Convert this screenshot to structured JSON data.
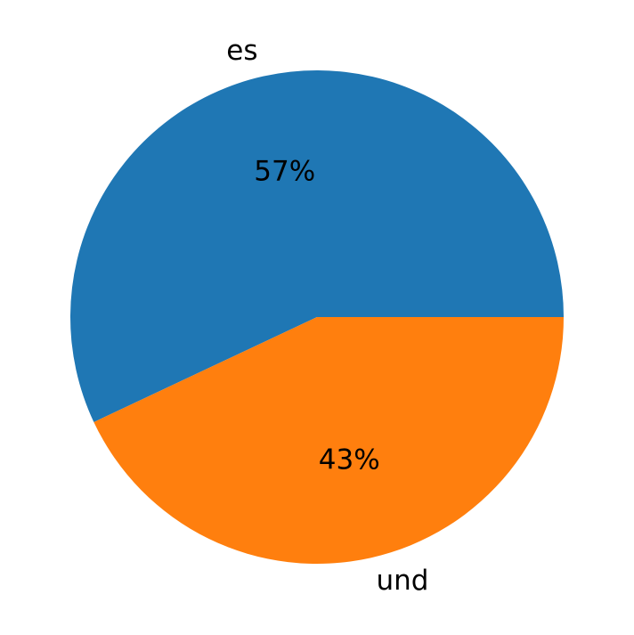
{
  "chart_data": {
    "type": "pie",
    "categories": [
      "es",
      "und"
    ],
    "values": [
      57,
      43
    ],
    "value_labels": [
      "57%",
      "43%"
    ],
    "colors": [
      "#1f77b4",
      "#ff7f0e"
    ],
    "start_angle": 0,
    "direction": "counterclockwise"
  }
}
